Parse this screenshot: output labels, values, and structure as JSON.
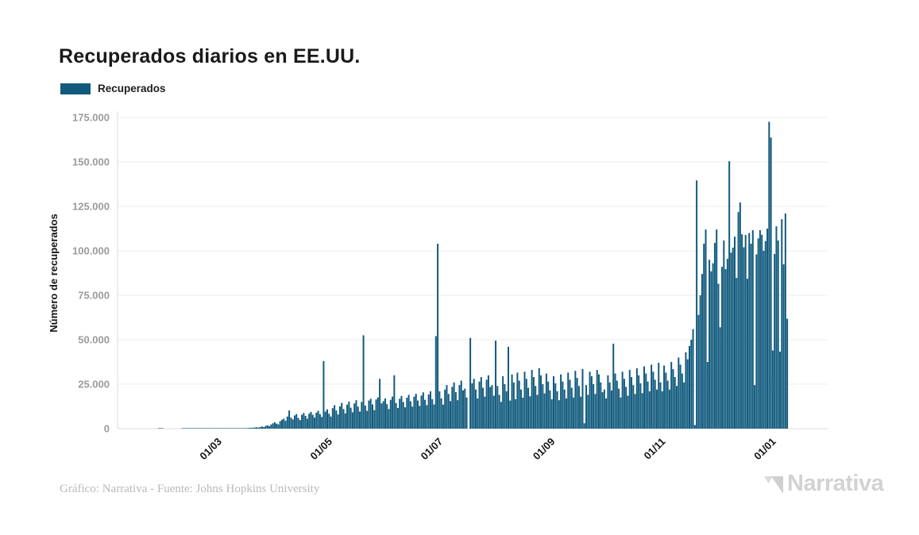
{
  "header": {
    "title": "Recuperados diarios en EE.UU."
  },
  "footer": {
    "credit": "Gráfico: Narrativa - Fuente: Johns Hopkins University",
    "logo_text": "Narrativa",
    "logo_color": "#d2d2d2"
  },
  "chart_data": {
    "type": "bar",
    "title": "Recuperados diarios en EE.UU.",
    "xlabel": "",
    "ylabel": "Número de recuperados",
    "ylim": [
      0,
      175000
    ],
    "grid": "horizontal",
    "legend_position": "top-left",
    "series": [
      {
        "name": "Recuperados",
        "color": "#115a7d"
      }
    ],
    "start_date": "2020-01-22",
    "end_date": "2021-01-10",
    "y_ticks": [
      {
        "value": 0,
        "label": "0"
      },
      {
        "value": 25000,
        "label": "25.000"
      },
      {
        "value": 50000,
        "label": "50.000"
      },
      {
        "value": 75000,
        "label": "75.000"
      },
      {
        "value": 100000,
        "label": "100.000"
      },
      {
        "value": 125000,
        "label": "125.000"
      },
      {
        "value": 150000,
        "label": "150.000"
      },
      {
        "value": 175000,
        "label": "175.000"
      }
    ],
    "x_ticks": [
      {
        "label": "01/03",
        "day_index": 39
      },
      {
        "label": "01/05",
        "day_index": 100
      },
      {
        "label": "01/07",
        "day_index": 161
      },
      {
        "label": "01/09",
        "day_index": 223
      },
      {
        "label": "01/11",
        "day_index": 284
      },
      {
        "label": "01/01",
        "day_index": 345
      }
    ],
    "values": [
      0,
      0,
      0,
      0,
      0,
      0,
      0,
      5,
      5,
      5,
      0,
      0,
      0,
      0,
      0,
      0,
      0,
      0,
      0,
      0,
      6,
      8,
      5,
      10,
      12,
      9,
      14,
      11,
      8,
      15,
      13,
      18,
      14,
      20,
      17,
      22,
      19,
      25,
      21,
      30,
      40,
      35,
      55,
      60,
      50,
      80,
      95,
      75,
      120,
      140,
      110,
      180,
      210,
      160,
      250,
      320,
      290,
      420,
      500,
      460,
      650,
      780,
      600,
      950,
      1200,
      900,
      1500,
      1900,
      1400,
      2300,
      3000,
      3600,
      2800,
      2400,
      4200,
      5000,
      5600,
      4400,
      6800,
      10200,
      6200,
      5200,
      7400,
      8200,
      6000,
      4800,
      7800,
      8800,
      7200,
      5600,
      8400,
      9400,
      7800,
      6200,
      9000,
      10000,
      8200,
      6600,
      38000,
      9600,
      10800,
      8400,
      6800,
      11500,
      13200,
      10200,
      8000,
      12500,
      14500,
      11000,
      8600,
      13500,
      15200,
      11800,
      9200,
      14200,
      16000,
      12400,
      9600,
      15000,
      52500,
      13000,
      10000,
      15800,
      16800,
      13600,
      10400,
      16400,
      17600,
      28000,
      14200,
      15500,
      17000,
      13800,
      11000,
      16200,
      18000,
      30000,
      14400,
      11600,
      16800,
      18400,
      15000,
      12000,
      17400,
      19000,
      15400,
      12400,
      18000,
      19600,
      15800,
      12800,
      18600,
      20400,
      16200,
      13200,
      19200,
      21000,
      16600,
      13600,
      52000,
      104000,
      21000,
      17000,
      13500,
      22000,
      24500,
      19500,
      15500,
      23500,
      26000,
      20500,
      16000,
      24500,
      27000,
      21500,
      22500,
      17500,
      0,
      51000,
      25500,
      28000,
      22000,
      17000,
      26500,
      29000,
      23000,
      18000,
      27500,
      30000,
      23500,
      24500,
      18500,
      49500,
      24000,
      19000,
      15000,
      29500,
      25000,
      21000,
      46000,
      15800,
      30500,
      26000,
      16600,
      31500,
      27000,
      22000,
      17400,
      32000,
      28000,
      23000,
      18200,
      33000,
      29000,
      24000,
      19000,
      34000,
      30000,
      25000,
      19800,
      31000,
      26500,
      21500,
      16500,
      29500,
      25500,
      21000,
      16000,
      30500,
      26500,
      22000,
      17000,
      31500,
      27500,
      23000,
      17500,
      32500,
      28500,
      24000,
      18000,
      33500,
      3000,
      24500,
      19000,
      32000,
      29500,
      25000,
      19500,
      33000,
      30500,
      26000,
      20500,
      22000,
      17000,
      30000,
      26000,
      21500,
      47800,
      31000,
      27000,
      22500,
      17500,
      32000,
      28000,
      23500,
      18500,
      33000,
      29000,
      24500,
      19500,
      34000,
      30000,
      25500,
      20000,
      35000,
      31000,
      26500,
      21000,
      36000,
      32000,
      27500,
      22000,
      37000,
      26000,
      21000,
      35500,
      31500,
      27000,
      22000,
      37500,
      33500,
      29000,
      24000,
      40000,
      36000,
      31000,
      26000,
      43000,
      39000,
      46500,
      50000,
      56000,
      2000,
      139600,
      64000,
      75000,
      87000,
      104000,
      112000,
      37500,
      95000,
      88500,
      93000,
      104500,
      112000,
      81500,
      57000,
      91000,
      105800,
      89700,
      95500,
      150400,
      99000,
      101800,
      108000,
      84800,
      121800,
      127200,
      109300,
      102000,
      108900,
      84300,
      110000,
      104000,
      111600,
      24500,
      98000,
      107000,
      111600,
      109000,
      100000,
      105500,
      112500,
      172600,
      163700,
      44000,
      98200,
      113800,
      105800,
      43300,
      117800,
      92400,
      121000,
      61800
    ]
  }
}
